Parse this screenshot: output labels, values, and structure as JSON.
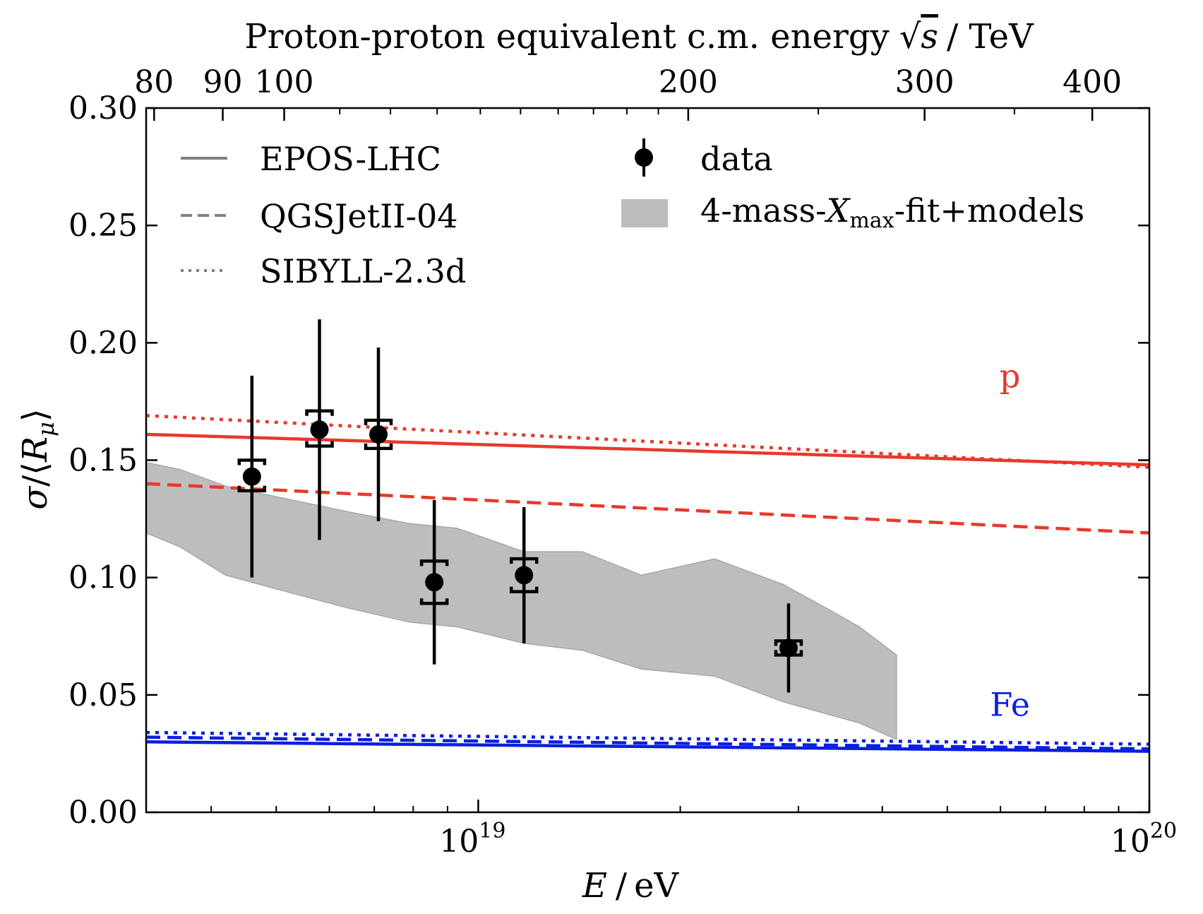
{
  "chart_data": {
    "type": "scatter",
    "xscale": "log",
    "xlim": [
      3.2e+18,
      1e+20
    ],
    "ylim": [
      0.0,
      0.3
    ],
    "xlabel": {
      "main": "E",
      "unit": "eV",
      "sep": "/"
    },
    "ylabel": {
      "sigma": "σ",
      "slash": "/",
      "lbr": "⟨",
      "R": "R",
      "mu": "μ",
      "rbr": "⟩"
    },
    "x_major_ticks": [
      {
        "value": 1e+19,
        "base": "10",
        "exp": "19"
      },
      {
        "value": 1e+20,
        "base": "10",
        "exp": "20"
      }
    ],
    "y_ticks": [
      {
        "value": 0.0,
        "label": "0.00"
      },
      {
        "value": 0.05,
        "label": "0.05"
      },
      {
        "value": 0.1,
        "label": "0.10"
      },
      {
        "value": 0.15,
        "label": "0.15"
      },
      {
        "value": 0.2,
        "label": "0.20"
      },
      {
        "value": 0.25,
        "label": "0.25"
      },
      {
        "value": 0.3,
        "label": "0.30"
      }
    ],
    "top_axis": {
      "title": {
        "pre": "Proton-proton equivalent c.m. energy",
        "s": "s",
        "unit": "/ TeV"
      },
      "ticks": [
        {
          "sqrt_s": 80,
          "label": "80"
        },
        {
          "sqrt_s": 90,
          "label": "90"
        },
        {
          "sqrt_s": 100,
          "label": "100"
        },
        {
          "sqrt_s": 200,
          "label": "200"
        },
        {
          "sqrt_s": 300,
          "label": "300"
        },
        {
          "sqrt_s": 400,
          "label": "400"
        }
      ]
    },
    "data_points": [
      {
        "E": 4.6e+18,
        "y": 0.143,
        "stat_err": 0.043,
        "sys_low": 0.137,
        "sys_high": 0.15
      },
      {
        "E": 5.8e+18,
        "y": 0.163,
        "stat_err": 0.047,
        "sys_low": 0.156,
        "sys_high": 0.171
      },
      {
        "E": 7.1e+18,
        "y": 0.161,
        "stat_err": 0.037,
        "sys_low": 0.155,
        "sys_high": 0.167
      },
      {
        "E": 8.6e+18,
        "y": 0.098,
        "stat_err": 0.035,
        "sys_low": 0.089,
        "sys_high": 0.107
      },
      {
        "E": 1.17e+19,
        "y": 0.101,
        "stat_err": 0.029,
        "sys_low": 0.094,
        "sys_high": 0.108
      },
      {
        "E": 2.9e+19,
        "y": 0.07,
        "stat_err": 0.019,
        "sys_low": 0.067,
        "sys_high": 0.073
      }
    ],
    "band": {
      "name": "4-mass-Xmax-fit+models",
      "color": "#bdbdbd",
      "upper": [
        [
          3.2e+18,
          0.149
        ],
        [
          3.6e+18,
          0.146
        ],
        [
          4.2e+18,
          0.139
        ],
        [
          5.5e+18,
          0.132
        ],
        [
          6.4e+18,
          0.128
        ],
        [
          7.9e+18,
          0.123
        ],
        [
          9.3e+18,
          0.121
        ],
        [
          1.17e+19,
          0.111
        ],
        [
          1.43e+19,
          0.111
        ],
        [
          1.75e+19,
          0.101
        ],
        [
          2.25e+19,
          0.108
        ],
        [
          2.85e+19,
          0.097
        ],
        [
          3.3e+19,
          0.087
        ],
        [
          3.7e+19,
          0.079
        ],
        [
          4.2e+19,
          0.067
        ]
      ],
      "lower": [
        [
          4.2e+19,
          0.031
        ],
        [
          3.7e+19,
          0.038
        ],
        [
          2.85e+19,
          0.047
        ],
        [
          2.25e+19,
          0.058
        ],
        [
          1.75e+19,
          0.061
        ],
        [
          1.43e+19,
          0.069
        ],
        [
          1.17e+19,
          0.072
        ],
        [
          9.3e+18,
          0.079
        ],
        [
          7.9e+18,
          0.081
        ],
        [
          6.4e+18,
          0.087
        ],
        [
          5.5e+18,
          0.092
        ],
        [
          4.2e+18,
          0.101
        ],
        [
          3.6e+18,
          0.113
        ],
        [
          3.2e+18,
          0.119
        ]
      ]
    },
    "model_lines": [
      {
        "model": "EPOS-LHC",
        "species": "p",
        "style": "solid",
        "color": "#e8392b",
        "start": 0.161,
        "end": 0.148
      },
      {
        "model": "QGSJetII-04",
        "species": "p",
        "style": "dashed",
        "color": "#e8392b",
        "start": 0.14,
        "end": 0.119
      },
      {
        "model": "SIBYLL-2.3d",
        "species": "p",
        "style": "dotted",
        "color": "#e8392b",
        "start": 0.169,
        "end": 0.147
      },
      {
        "model": "EPOS-LHC",
        "species": "Fe",
        "style": "solid",
        "color": "#0a1fe0",
        "start": 0.03,
        "end": 0.026
      },
      {
        "model": "QGSJetII-04",
        "species": "Fe",
        "style": "dashed",
        "color": "#0a1fe0",
        "start": 0.032,
        "end": 0.027
      },
      {
        "model": "SIBYLL-2.3d",
        "species": "Fe",
        "style": "dotted",
        "color": "#0a1fe0",
        "start": 0.034,
        "end": 0.029
      }
    ],
    "annotations": [
      {
        "text": "p",
        "color": "#e8392b",
        "E": 6.2e+19,
        "y": 0.181
      },
      {
        "text": "Fe",
        "color": "#0a1fe0",
        "E": 6.2e+19,
        "y": 0.041
      }
    ],
    "legend": {
      "placement": "top",
      "models": [
        {
          "label": "EPOS-LHC",
          "style": "solid"
        },
        {
          "label": "QGSJetII-04",
          "style": "dashed"
        },
        {
          "label": "SIBYLL-2.3d",
          "style": "dotted"
        }
      ],
      "data_label": "data",
      "band_label": {
        "pre": "4-mass-",
        "X": "X",
        "sub": "max",
        "post": "-fit+models"
      },
      "gray": "#808080"
    }
  }
}
